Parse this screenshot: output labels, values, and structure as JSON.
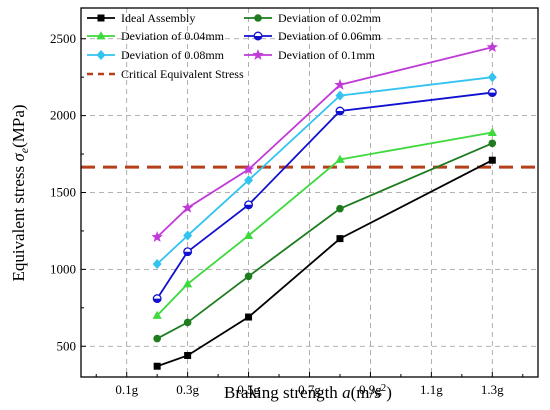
{
  "chart_data": {
    "type": "line",
    "x_tick_labels": [
      "0.1g",
      "0.3g",
      "0.5g",
      "0.7g",
      "0.9g",
      "1.1g",
      "1.3g"
    ],
    "x_ticks": [
      0.1,
      0.3,
      0.5,
      0.7,
      0.9,
      1.1,
      1.3
    ],
    "xlim": [
      -0.05,
      1.45
    ],
    "ylim": [
      300,
      2700
    ],
    "y_ticks": [
      500,
      1000,
      1500,
      2000,
      2500
    ],
    "y_tick_labels": [
      "500",
      "1000",
      "1500",
      "2000",
      "2500"
    ],
    "x": [
      0.2,
      0.3,
      0.5,
      0.8,
      1.3
    ],
    "xlabel": {
      "prefix": "Braking strength ",
      "symbol": "a",
      "unit_pre": "(m/s",
      "unit_sup": "2",
      "unit_post": ")"
    },
    "ylabel": {
      "prefix": "Equivalent stress ",
      "symbol": "σ",
      "subscript": "e",
      "unit": "(MPa)"
    },
    "grid": true,
    "legend_position": "top",
    "series": [
      {
        "name": "Ideal Assembly",
        "color": "#000000",
        "marker": "square",
        "values": [
          370,
          440,
          690,
          1200,
          1710
        ]
      },
      {
        "name": "Deviation of 0.02mm",
        "color": "#1e7b1e",
        "marker": "circle",
        "values": [
          550,
          655,
          955,
          1395,
          1820
        ]
      },
      {
        "name": "Deviation of 0.04mm",
        "color": "#3dd93d",
        "marker": "triangle",
        "values": [
          700,
          905,
          1220,
          1715,
          1890
        ]
      },
      {
        "name": "Deviation of 0.06mm",
        "color": "#1010d0",
        "marker": "half-circle",
        "values": [
          810,
          1115,
          1420,
          2030,
          2150
        ]
      },
      {
        "name": "Deviation of 0.08mm",
        "color": "#33c3f0",
        "marker": "diamond",
        "values": [
          1035,
          1220,
          1580,
          2130,
          2250
        ]
      },
      {
        "name": "Deviation of 0.1mm",
        "color": "#c03ad8",
        "marker": "star",
        "values": [
          1210,
          1400,
          1650,
          2200,
          2445
        ]
      }
    ],
    "reference_line": {
      "name": "Critical Equivalent Stress",
      "value": 1665,
      "color": "#b5401a",
      "style": "dashed"
    }
  }
}
